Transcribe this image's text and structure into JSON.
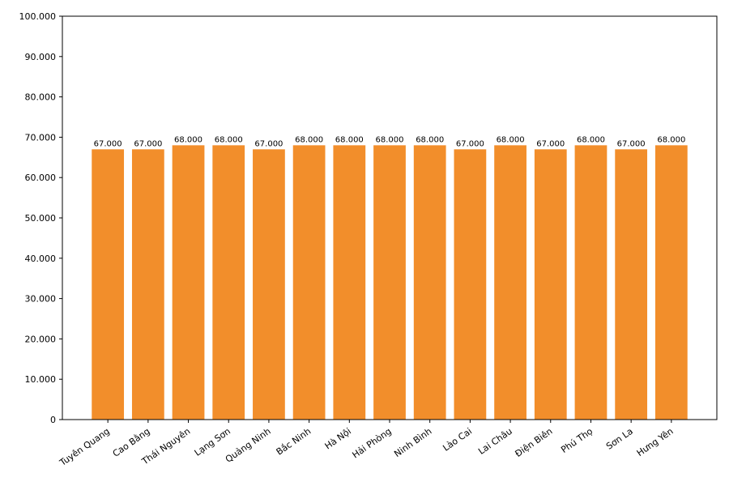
{
  "chart_data": {
    "type": "bar",
    "categories": [
      "Tuyên Quang",
      "Cao Bằng",
      "Thái Nguyên",
      "Lạng Sơn",
      "Quảng Ninh",
      "Bắc Ninh",
      "Hà Nội",
      "Hải Phòng",
      "Ninh Bình",
      "Lào Cai",
      "Lai Châu",
      "Điện Biên",
      "Phú Thọ",
      "Sơn La",
      "Hưng Yên"
    ],
    "values": [
      67000,
      67000,
      68000,
      68000,
      67000,
      68000,
      68000,
      68000,
      68000,
      67000,
      68000,
      67000,
      68000,
      67000,
      68000
    ],
    "value_labels": [
      "67.000",
      "67.000",
      "68.000",
      "68.000",
      "67.000",
      "68.000",
      "68.000",
      "68.000",
      "68.000",
      "67.000",
      "68.000",
      "67.000",
      "68.000",
      "67.000",
      "68.000"
    ],
    "color": "#f28e2b",
    "ylim": [
      0,
      100000
    ],
    "yticks": [
      0,
      {
        "value": 10000,
        "label": "10.000"
      },
      {
        "value": 20000,
        "label": "20.000"
      },
      {
        "value": 30000,
        "label": "30.000"
      },
      {
        "value": 40000,
        "label": "40.000"
      },
      {
        "value": 50000,
        "label": "50.000"
      },
      {
        "value": 60000,
        "label": "60.000"
      },
      {
        "value": 70000,
        "label": "70.000"
      },
      {
        "value": 80000,
        "label": "80.000"
      },
      {
        "value": 90000,
        "label": "90.000"
      },
      {
        "value": 100000,
        "label": "100.000"
      }
    ],
    "grid": false
  }
}
